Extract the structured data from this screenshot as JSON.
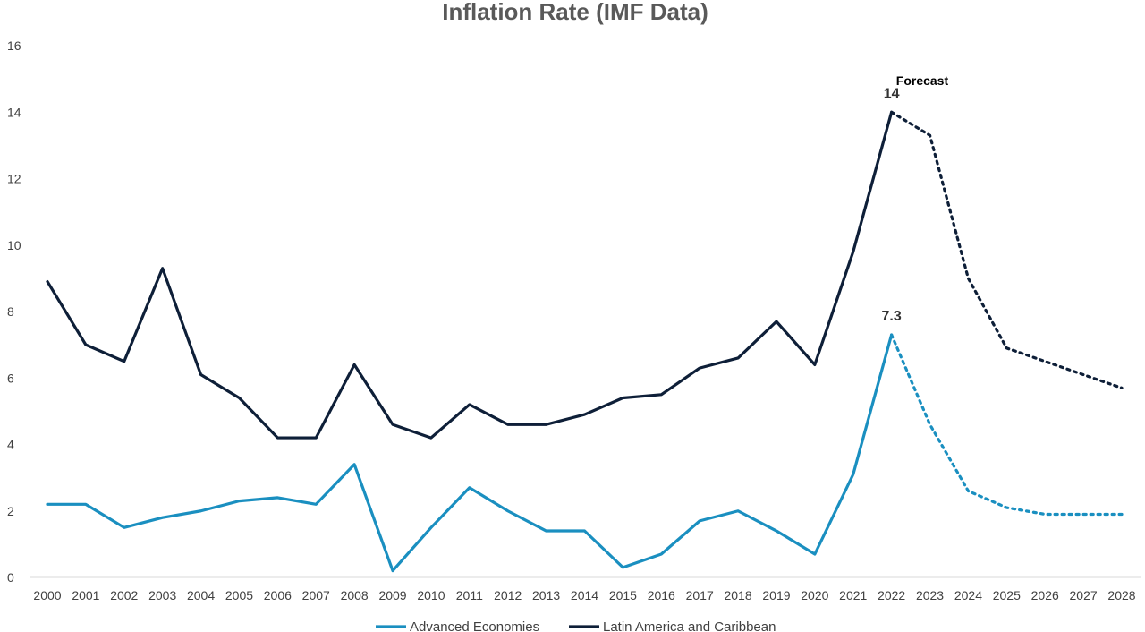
{
  "chart_data": {
    "type": "line",
    "title": "Inflation Rate (IMF Data)",
    "xlabel": "",
    "ylabel": "",
    "ylim": [
      0,
      16
    ],
    "yticks": [
      0,
      2,
      4,
      6,
      8,
      10,
      12,
      14,
      16
    ],
    "x": [
      2000,
      2001,
      2002,
      2003,
      2004,
      2005,
      2006,
      2007,
      2008,
      2009,
      2010,
      2011,
      2012,
      2013,
      2014,
      2015,
      2016,
      2017,
      2018,
      2019,
      2020,
      2021,
      2022,
      2023,
      2024,
      2025,
      2026,
      2027,
      2028
    ],
    "forecast_start": 2022,
    "grid": false,
    "legend_position": "bottom",
    "series": [
      {
        "name": "Advanced Economies",
        "color": "#1a8fc0",
        "values": [
          2.2,
          2.2,
          1.5,
          1.8,
          2.0,
          2.3,
          2.4,
          2.2,
          3.4,
          0.2,
          1.5,
          2.7,
          2.0,
          1.4,
          1.4,
          0.3,
          0.7,
          1.7,
          2.0,
          1.4,
          0.7,
          3.1,
          7.3,
          4.6,
          2.6,
          2.1,
          1.9,
          1.9,
          1.9
        ]
      },
      {
        "name": "Latin America and Caribbean",
        "color": "#0e1f38",
        "values": [
          8.9,
          7.0,
          6.5,
          9.3,
          6.1,
          5.4,
          4.2,
          4.2,
          6.4,
          4.6,
          4.2,
          5.2,
          4.6,
          4.6,
          4.9,
          5.4,
          5.5,
          6.3,
          6.6,
          7.7,
          6.4,
          9.8,
          14.0,
          13.3,
          9.0,
          6.9,
          6.5,
          6.1,
          5.7
        ]
      }
    ],
    "annotations": [
      {
        "text": "Forecast",
        "x": 2022.8,
        "y": 15.3
      },
      {
        "text": "14",
        "x": 2022,
        "y": 14,
        "series": 1
      },
      {
        "text": "7.3",
        "x": 2022,
        "y": 7.3,
        "series": 0
      }
    ]
  }
}
